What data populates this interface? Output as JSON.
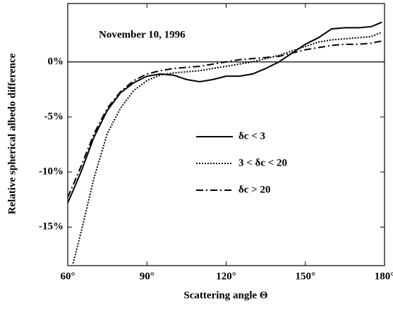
{
  "chart_data": {
    "type": "line",
    "annotation": "November 10, 1996",
    "xlabel": "Scattering angle Θ",
    "ylabel": "Relative spherical albedo difference",
    "x": [
      60,
      62,
      65,
      70,
      75,
      80,
      85,
      90,
      95,
      100,
      105,
      110,
      115,
      120,
      125,
      130,
      135,
      140,
      145,
      150,
      155,
      160,
      165,
      170,
      175,
      179
    ],
    "series": [
      {
        "name": "δc < 3",
        "color": "#000000",
        "dash": "solid",
        "values": [
          -12.8,
          -11.7,
          -10.0,
          -6.8,
          -4.4,
          -2.8,
          -1.9,
          -1.3,
          -1.1,
          -1.2,
          -1.6,
          -1.8,
          -1.6,
          -1.3,
          -1.3,
          -1.1,
          -0.6,
          0.0,
          0.8,
          1.6,
          2.2,
          3.0,
          3.1,
          3.1,
          3.2,
          3.6
        ]
      },
      {
        "name": "3 < δc < 20",
        "color": "#000000",
        "dash": "dotted",
        "values": [
          null,
          -18.3,
          -15.5,
          -10.5,
          -6.5,
          -4.2,
          -2.6,
          -1.7,
          -1.2,
          -1.0,
          -0.9,
          -0.8,
          -0.6,
          -0.4,
          -0.2,
          0.0,
          0.3,
          0.6,
          1.0,
          1.4,
          1.8,
          2.0,
          2.1,
          2.2,
          2.3,
          2.7
        ]
      },
      {
        "name": "δc > 20",
        "color": "#000000",
        "dash": "dashdot",
        "values": [
          -12.3,
          -11.2,
          -9.5,
          -6.5,
          -4.2,
          -2.7,
          -1.7,
          -1.1,
          -0.8,
          -0.6,
          -0.5,
          -0.4,
          -0.2,
          0.0,
          0.2,
          0.3,
          0.4,
          0.5,
          0.8,
          1.1,
          1.3,
          1.5,
          1.6,
          1.6,
          1.7,
          1.9
        ]
      }
    ],
    "xlim": [
      60,
      180
    ],
    "ylim": [
      -18.5,
      5.3
    ],
    "xticks": [
      {
        "value": 60,
        "label": "60°"
      },
      {
        "value": 90,
        "label": "90°"
      },
      {
        "value": 120,
        "label": "120°"
      },
      {
        "value": 150,
        "label": "150°"
      },
      {
        "value": 180,
        "label": "180°"
      }
    ],
    "yticks": [
      {
        "value": 0,
        "label": "0%"
      },
      {
        "value": -5,
        "label": "-5%"
      },
      {
        "value": -10,
        "label": "-10%"
      },
      {
        "value": -15,
        "label": "-15%"
      }
    ],
    "hline": 0,
    "grid": false
  }
}
